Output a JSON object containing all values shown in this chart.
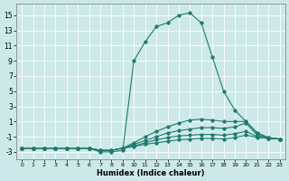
{
  "xlabel": "Humidex (Indice chaleur)",
  "bg_color": "#cde8e8",
  "grid_color": "#ffffff",
  "line_color": "#1e7b6e",
  "xlim": [
    -0.5,
    23.5
  ],
  "ylim": [
    -4,
    16.5
  ],
  "xticks": [
    0,
    1,
    2,
    3,
    4,
    5,
    6,
    7,
    8,
    9,
    10,
    11,
    12,
    13,
    14,
    15,
    16,
    17,
    18,
    19,
    20,
    21,
    22,
    23
  ],
  "yticks": [
    -3,
    -1,
    1,
    3,
    5,
    7,
    9,
    11,
    13,
    15
  ],
  "series": [
    {
      "x": [
        0,
        1,
        2,
        3,
        4,
        5,
        6,
        7,
        8,
        9,
        10,
        11,
        12,
        13,
        14,
        15,
        16,
        17,
        18,
        19,
        20,
        21,
        22,
        23
      ],
      "y": [
        -2.5,
        -2.5,
        -2.5,
        -2.5,
        -2.5,
        -2.5,
        -2.5,
        -3.0,
        -3.0,
        -2.8,
        9.0,
        11.5,
        13.5,
        14.0,
        15.0,
        15.3,
        14.0,
        9.5,
        5.0,
        2.5,
        1.0,
        -0.5,
        -1.2,
        -1.3
      ]
    },
    {
      "x": [
        0,
        1,
        2,
        3,
        4,
        5,
        6,
        7,
        8,
        9,
        10,
        11,
        12,
        13,
        14,
        15,
        16,
        17,
        18,
        19,
        20,
        21,
        22,
        23
      ],
      "y": [
        -2.5,
        -2.5,
        -2.5,
        -2.5,
        -2.5,
        -2.5,
        -2.5,
        -2.8,
        -2.8,
        -2.5,
        -1.8,
        -1.0,
        -0.3,
        0.3,
        0.8,
        1.2,
        1.3,
        1.2,
        1.0,
        1.0,
        1.0,
        -0.5,
        -1.1,
        -1.3
      ]
    },
    {
      "x": [
        0,
        1,
        2,
        3,
        4,
        5,
        6,
        7,
        8,
        9,
        10,
        11,
        12,
        13,
        14,
        15,
        16,
        17,
        18,
        19,
        20,
        21,
        22,
        23
      ],
      "y": [
        -2.5,
        -2.5,
        -2.5,
        -2.5,
        -2.5,
        -2.5,
        -2.5,
        -2.8,
        -2.8,
        -2.5,
        -2.0,
        -1.5,
        -1.0,
        -0.5,
        -0.2,
        0.0,
        0.2,
        0.2,
        0.1,
        0.3,
        0.8,
        -0.8,
        -1.1,
        -1.3
      ]
    },
    {
      "x": [
        0,
        1,
        2,
        3,
        4,
        5,
        6,
        7,
        8,
        9,
        10,
        11,
        12,
        13,
        14,
        15,
        16,
        17,
        18,
        19,
        20,
        21,
        22,
        23
      ],
      "y": [
        -2.5,
        -2.5,
        -2.5,
        -2.5,
        -2.5,
        -2.5,
        -2.5,
        -2.8,
        -2.8,
        -2.5,
        -2.2,
        -1.8,
        -1.4,
        -1.1,
        -0.9,
        -0.8,
        -0.7,
        -0.7,
        -0.8,
        -0.6,
        -0.3,
        -1.0,
        -1.2,
        -1.3
      ]
    },
    {
      "x": [
        0,
        1,
        2,
        3,
        4,
        5,
        6,
        7,
        8,
        9,
        10,
        11,
        12,
        13,
        14,
        15,
        16,
        17,
        18,
        19,
        20,
        21,
        22,
        23
      ],
      "y": [
        -2.5,
        -2.5,
        -2.5,
        -2.5,
        -2.5,
        -2.5,
        -2.5,
        -2.8,
        -2.8,
        -2.5,
        -2.3,
        -2.0,
        -1.8,
        -1.6,
        -1.4,
        -1.3,
        -1.2,
        -1.2,
        -1.3,
        -1.1,
        -0.8,
        -1.1,
        -1.2,
        -1.3
      ]
    }
  ]
}
